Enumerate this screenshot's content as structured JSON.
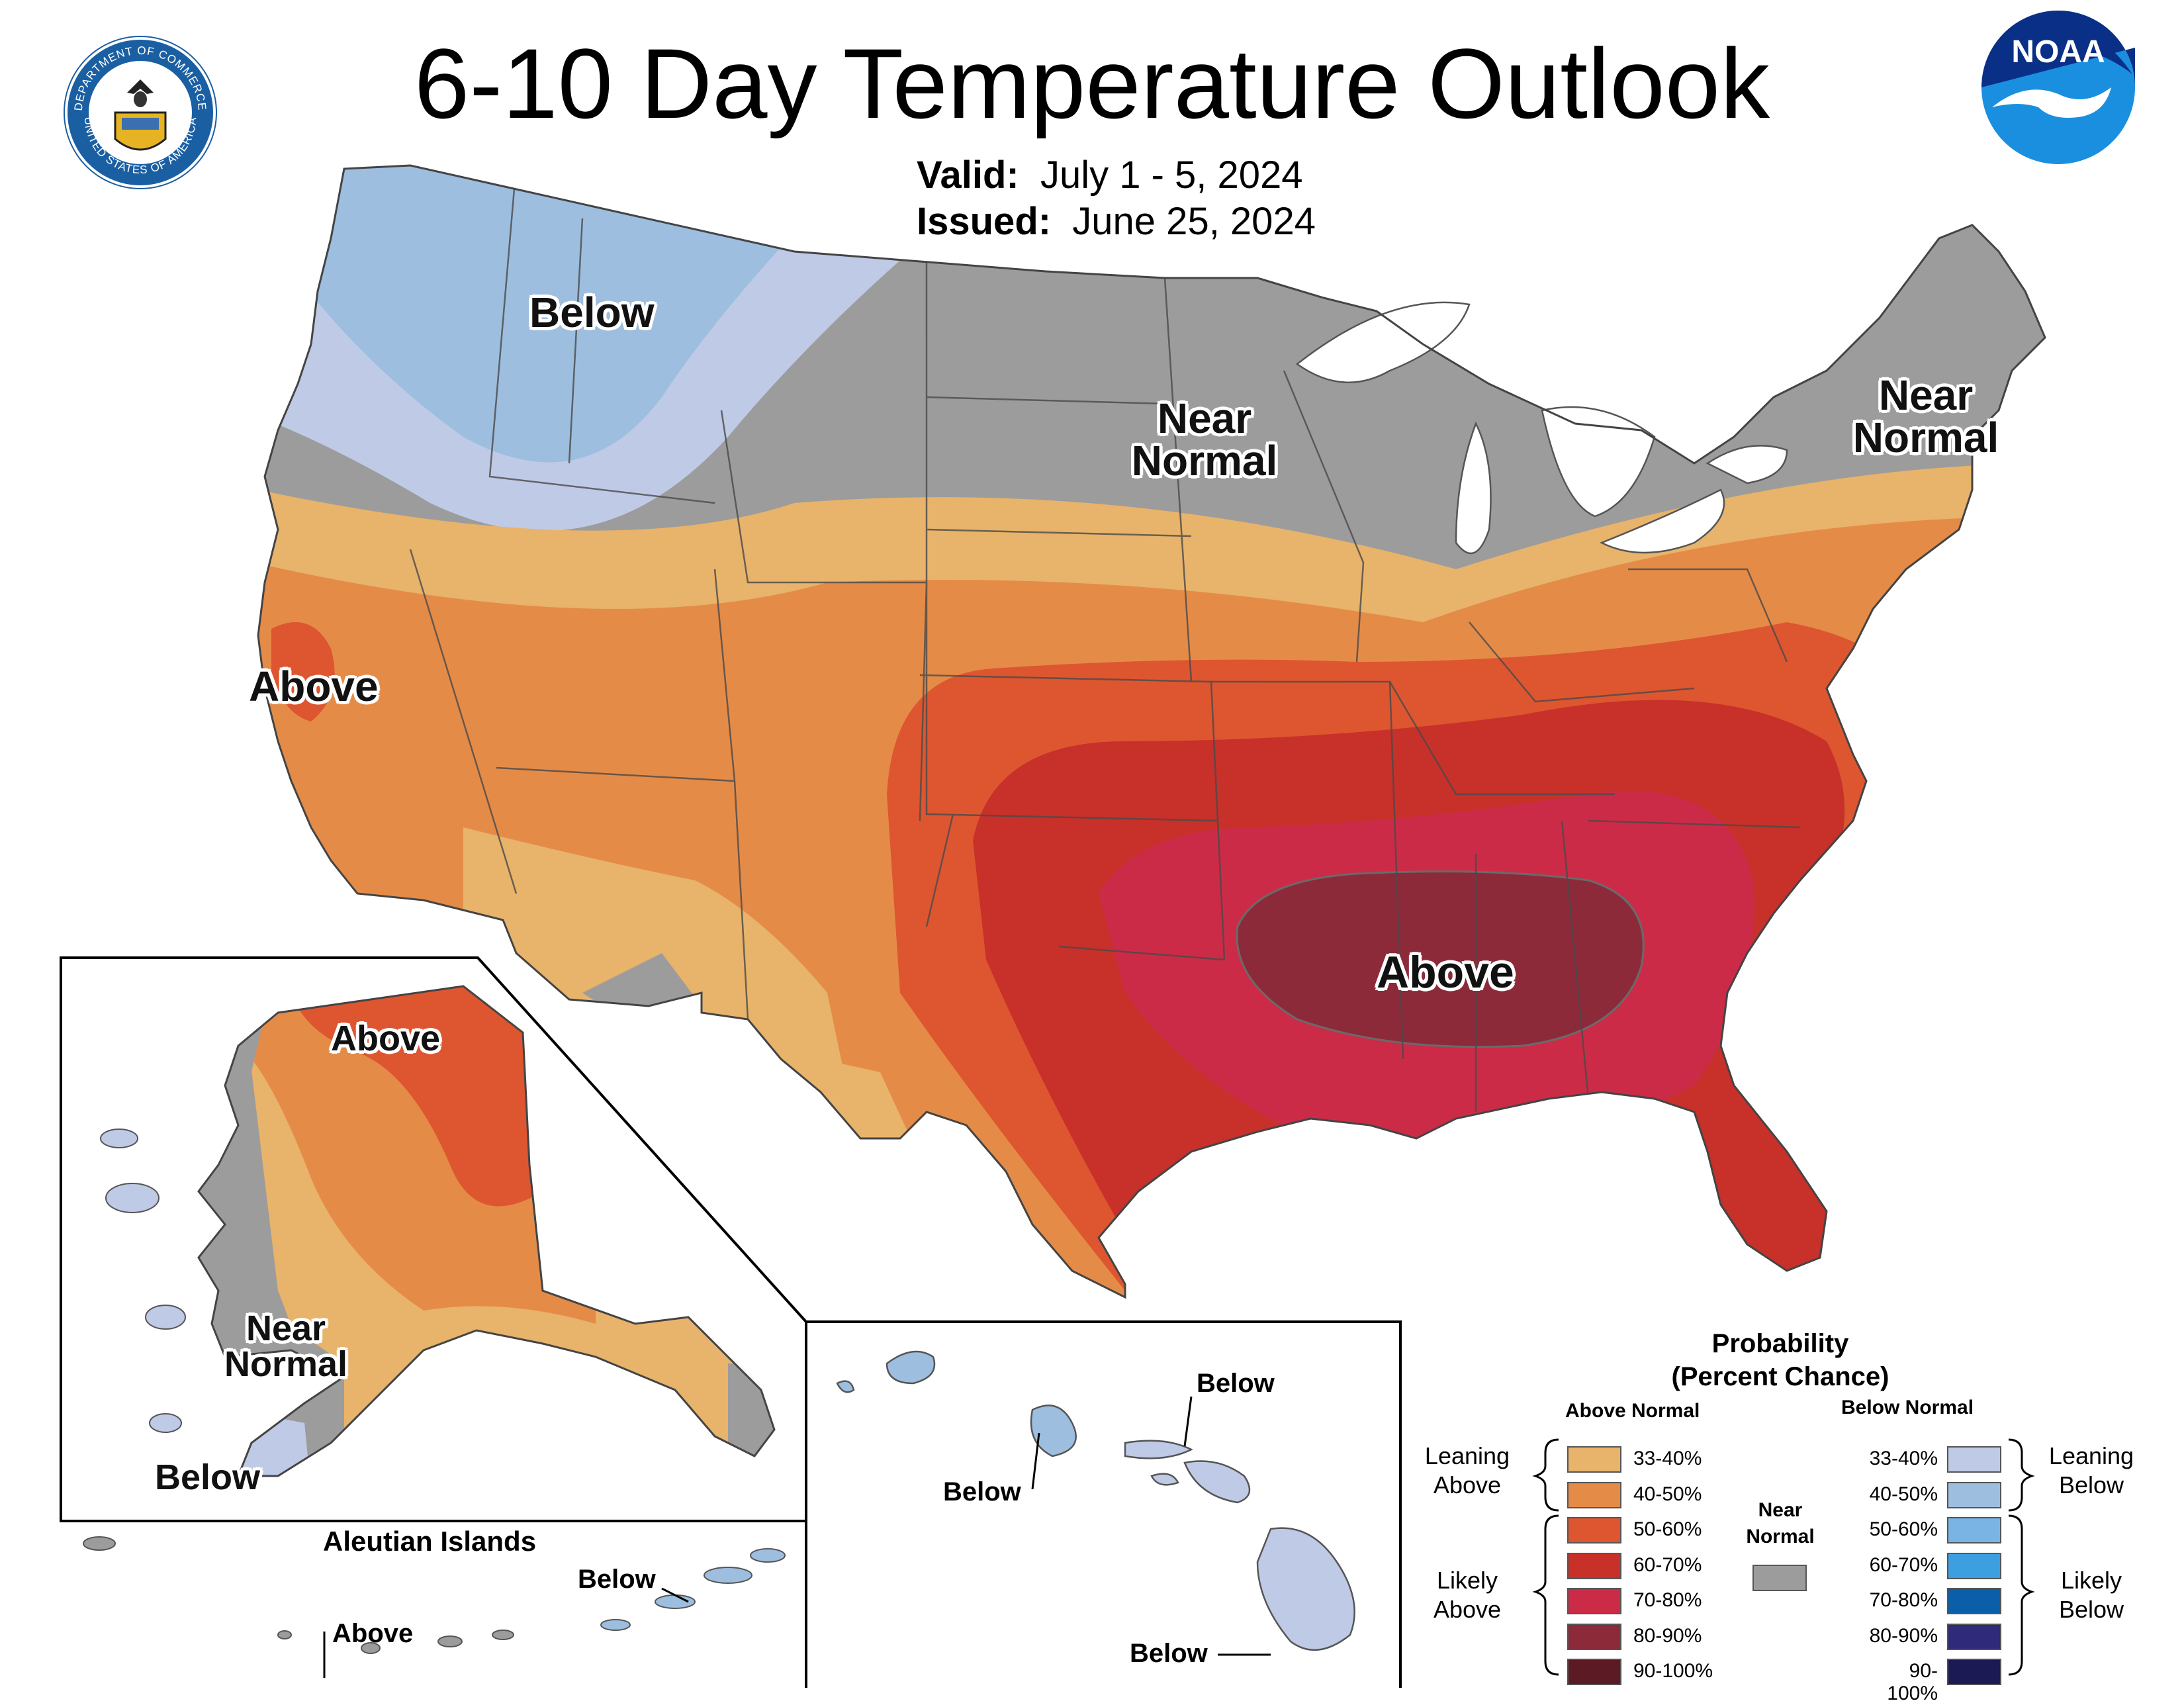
{
  "title": "6-10 Day Temperature Outlook",
  "valid_label": "Valid:",
  "valid_value": "July 1 - 5, 2024",
  "issued_label": "Issued:",
  "issued_value": "June 25, 2024",
  "logos": {
    "commerce_seal_text_top": "DEPARTMENT OF COMMERCE",
    "commerce_seal_text_bottom": "UNITED STATES OF AMERICA",
    "noaa_text": "NOAA"
  },
  "map_labels": {
    "conus_below": "Below",
    "conus_near_normal_north_line1": "Near",
    "conus_near_normal_north_line2": "Normal",
    "conus_near_normal_ne_line1": "Near",
    "conus_near_normal_ne_line2": "Normal",
    "conus_above_west": "Above",
    "conus_above_south": "Above",
    "ak_above": "Above",
    "ak_near_line1": "Near",
    "ak_near_line2": "Normal",
    "ak_below": "Below",
    "aleutian_title": "Aleutian Islands",
    "aleutian_below": "Below",
    "aleutian_above": "Above",
    "hi_below_1": "Below",
    "hi_below_2": "Below",
    "hi_below_3": "Below"
  },
  "legend": {
    "title_line1": "Probability",
    "title_line2": "(Percent Chance)",
    "above_header": "Above Normal",
    "below_header": "Below Normal",
    "near_normal_line1": "Near",
    "near_normal_line2": "Normal",
    "leaning_above_line1": "Leaning",
    "leaning_above_line2": "Above",
    "likely_above_line1": "Likely",
    "likely_above_line2": "Above",
    "leaning_below_line1": "Leaning",
    "leaning_below_line2": "Below",
    "likely_below_line1": "Likely",
    "likely_below_line2": "Below",
    "above_items": [
      {
        "label": "33-40%",
        "color": "#e8b36a"
      },
      {
        "label": "40-50%",
        "color": "#e58b48"
      },
      {
        "label": "50-60%",
        "color": "#dd5630"
      },
      {
        "label": "60-70%",
        "color": "#c8302a"
      },
      {
        "label": "70-80%",
        "color": "#cc2b47"
      },
      {
        "label": "80-90%",
        "color": "#8c2a3a"
      },
      {
        "label": "90-100%",
        "color": "#5c1a24"
      }
    ],
    "below_items": [
      {
        "label": "33-40%",
        "color": "#bfcae6"
      },
      {
        "label": "40-50%",
        "color": "#9dbedf"
      },
      {
        "label": "50-60%",
        "color": "#7ab4e4"
      },
      {
        "label": "60-70%",
        "color": "#3c9fe0"
      },
      {
        "label": "70-80%",
        "color": "#0b5fa8"
      },
      {
        "label": "80-90%",
        "color": "#2f2a7a"
      },
      {
        "label": "90-100%",
        "color": "#1c1a55"
      }
    ],
    "near_color": "#9c9c9c"
  }
}
